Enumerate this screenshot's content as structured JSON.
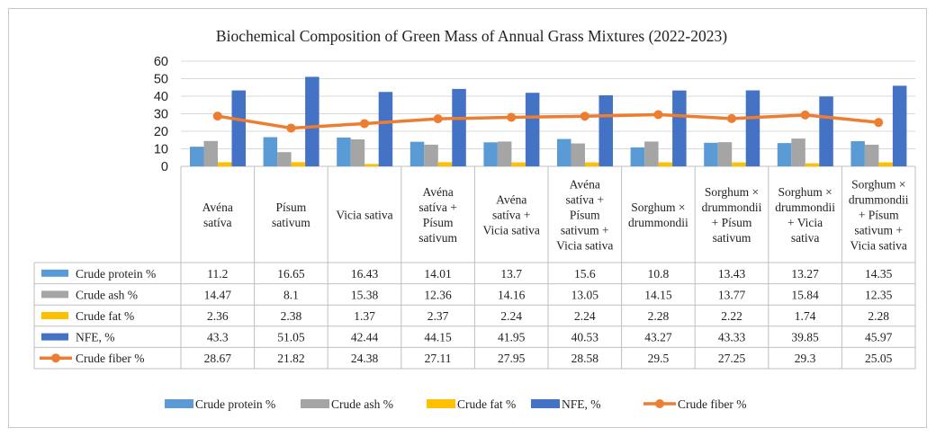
{
  "chart_data": {
    "type": "bar",
    "title": "Biochemical Composition of Green Mass of Annual Grass Mixtures (2022-2023)",
    "ylim": [
      0,
      60
    ],
    "yticks": [
      0,
      10,
      20,
      30,
      40,
      50,
      60
    ],
    "grid": true,
    "legend_position": "bottom",
    "categories": [
      [
        "Avéna",
        "satíva"
      ],
      [
        "Písum",
        "sativum"
      ],
      [
        "Vicia sativa"
      ],
      [
        "Avéna",
        "satíva +",
        "Písum",
        "sativum"
      ],
      [
        "Avéna",
        "satíva +",
        "Vicia sativa"
      ],
      [
        "Avéna",
        "satíva +",
        "Písum",
        "sativum +",
        "Vicia sativa"
      ],
      [
        "Sorghum ×",
        "drummondii"
      ],
      [
        "Sorghum ×",
        "drummondii",
        "+ Písum",
        "sativum"
      ],
      [
        "Sorghum ×",
        "drummondii",
        "+ Vicia",
        "sativa"
      ],
      [
        "Sorghum ×",
        "drummondii",
        "+ Písum",
        "sativum +",
        "Vicia sativa"
      ]
    ],
    "series": [
      {
        "name": "Crude protein %",
        "table_name": "Crude protein  %",
        "kind": "bar",
        "color": "#5B9BD5",
        "values": [
          11.2,
          16.65,
          16.43,
          14.01,
          13.7,
          15.6,
          10.8,
          13.43,
          13.27,
          14.35
        ],
        "labels": [
          "11.2",
          "16.65",
          "16.43",
          "14.01",
          "13.7",
          "15.6",
          "10.8",
          "13.43",
          "13.27",
          "14.35"
        ]
      },
      {
        "name": "Crude ash %",
        "table_name": "Crude ash %",
        "kind": "bar",
        "color": "#A5A5A5",
        "values": [
          14.47,
          8.1,
          15.38,
          12.36,
          14.16,
          13.05,
          14.15,
          13.77,
          15.84,
          12.35
        ],
        "labels": [
          "14.47",
          "8.1",
          "15.38",
          "12.36",
          "14.16",
          "13.05",
          "14.15",
          "13.77",
          "15.84",
          "12.35"
        ]
      },
      {
        "name": "Crude fat %",
        "table_name": "Crude fat %",
        "kind": "bar",
        "color": "#FFC000",
        "values": [
          2.36,
          2.38,
          1.37,
          2.37,
          2.24,
          2.24,
          2.28,
          2.22,
          1.74,
          2.28
        ],
        "labels": [
          "2.36",
          "2.38",
          "1.37",
          "2.37",
          "2.24",
          "2.24",
          "2.28",
          "2.22",
          "1.74",
          "2.28"
        ]
      },
      {
        "name": "NFE, %",
        "table_name": "NFE, %",
        "kind": "bar",
        "color": "#4472C4",
        "values": [
          43.3,
          51.05,
          42.44,
          44.15,
          41.95,
          40.53,
          43.27,
          43.33,
          39.85,
          45.97
        ],
        "labels": [
          "43.3",
          "51.05",
          "42.44",
          "44.15",
          "41.95",
          "40.53",
          "43.27",
          "43.33",
          "39.85",
          "45.97"
        ]
      },
      {
        "name": "Crude fiber %",
        "table_name": "Crude fiber %",
        "kind": "line",
        "color": "#ED7D31",
        "values": [
          28.67,
          21.82,
          24.38,
          27.11,
          27.95,
          28.58,
          29.5,
          27.25,
          29.3,
          25.05
        ],
        "labels": [
          "28.67",
          "21.82",
          "24.38",
          "27.11",
          "27.95",
          "28.58",
          "29.5",
          "27.25",
          "29.3",
          "25.05"
        ]
      }
    ]
  }
}
